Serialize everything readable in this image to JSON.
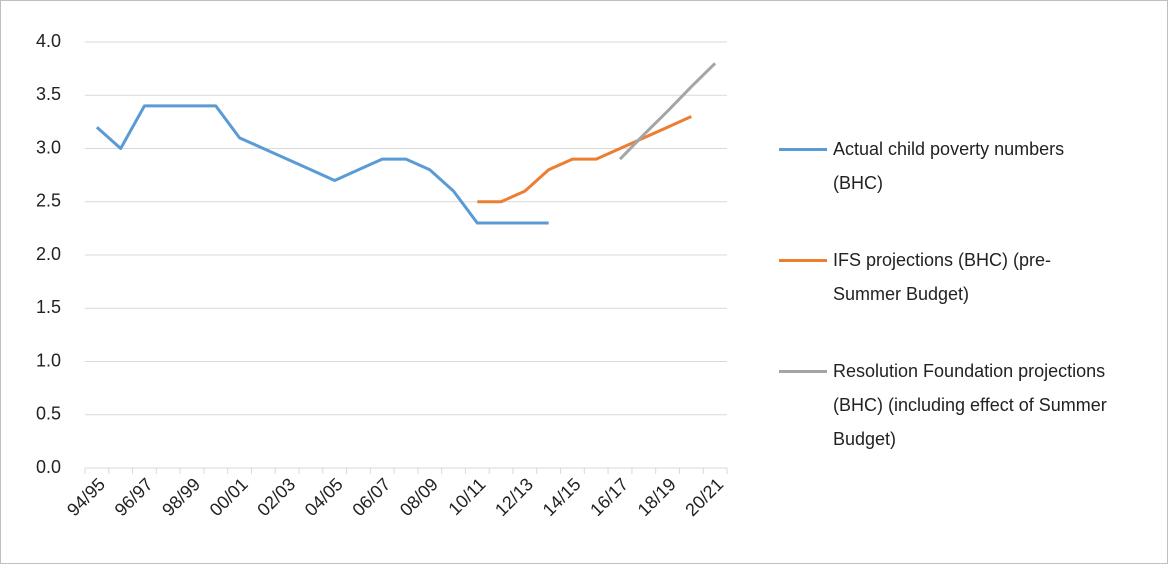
{
  "chart_data": {
    "type": "line",
    "categories": [
      "94/95",
      null,
      "96/97",
      null,
      "98/99",
      null,
      "00/01",
      null,
      "02/03",
      null,
      "04/05",
      null,
      "06/07",
      null,
      "08/09",
      null,
      "10/11",
      null,
      "12/13",
      null,
      "14/15",
      null,
      "16/17",
      null,
      "18/19",
      null,
      "20/21"
    ],
    "series": [
      {
        "name": "Actual child poverty numbers (BHC)",
        "color": "#5b9bd5",
        "values": [
          3.2,
          3.0,
          3.4,
          3.4,
          3.4,
          3.4,
          3.1,
          3.0,
          2.9,
          2.8,
          2.7,
          2.8,
          2.9,
          2.9,
          2.8,
          2.6,
          2.3,
          2.3,
          2.3,
          2.3,
          null,
          null,
          null,
          null,
          null,
          null,
          null
        ]
      },
      {
        "name": "IFS projections (BHC)  (pre-Summer Budget)",
        "color": "#ed7d31",
        "values": [
          null,
          null,
          null,
          null,
          null,
          null,
          null,
          null,
          null,
          null,
          null,
          null,
          null,
          null,
          null,
          null,
          2.5,
          2.5,
          2.6,
          2.8,
          2.9,
          2.9,
          3.0,
          3.1,
          3.2,
          3.3,
          null
        ]
      },
      {
        "name": "Resolution Foundation projections (BHC) (including effect of Summer Budget)",
        "color": "#a5a5a5",
        "values": [
          null,
          null,
          null,
          null,
          null,
          null,
          null,
          null,
          null,
          null,
          null,
          null,
          null,
          null,
          null,
          null,
          null,
          null,
          null,
          null,
          null,
          null,
          2.9,
          3.13,
          3.35,
          3.58,
          3.8
        ]
      }
    ],
    "ylim": [
      0,
      4
    ],
    "yticks": [
      {
        "value": 0,
        "label": "0.0"
      },
      {
        "value": 0.5,
        "label": "0.5"
      },
      {
        "value": 1,
        "label": "1.0"
      },
      {
        "value": 1.5,
        "label": "1.5"
      },
      {
        "value": 2,
        "label": "2.0"
      },
      {
        "value": 2.5,
        "label": "2.5"
      },
      {
        "value": 3,
        "label": "3.0"
      },
      {
        "value": 3.5,
        "label": "3.5"
      },
      {
        "value": 4,
        "label": "4.0"
      }
    ],
    "grid": true,
    "legend": "right"
  }
}
